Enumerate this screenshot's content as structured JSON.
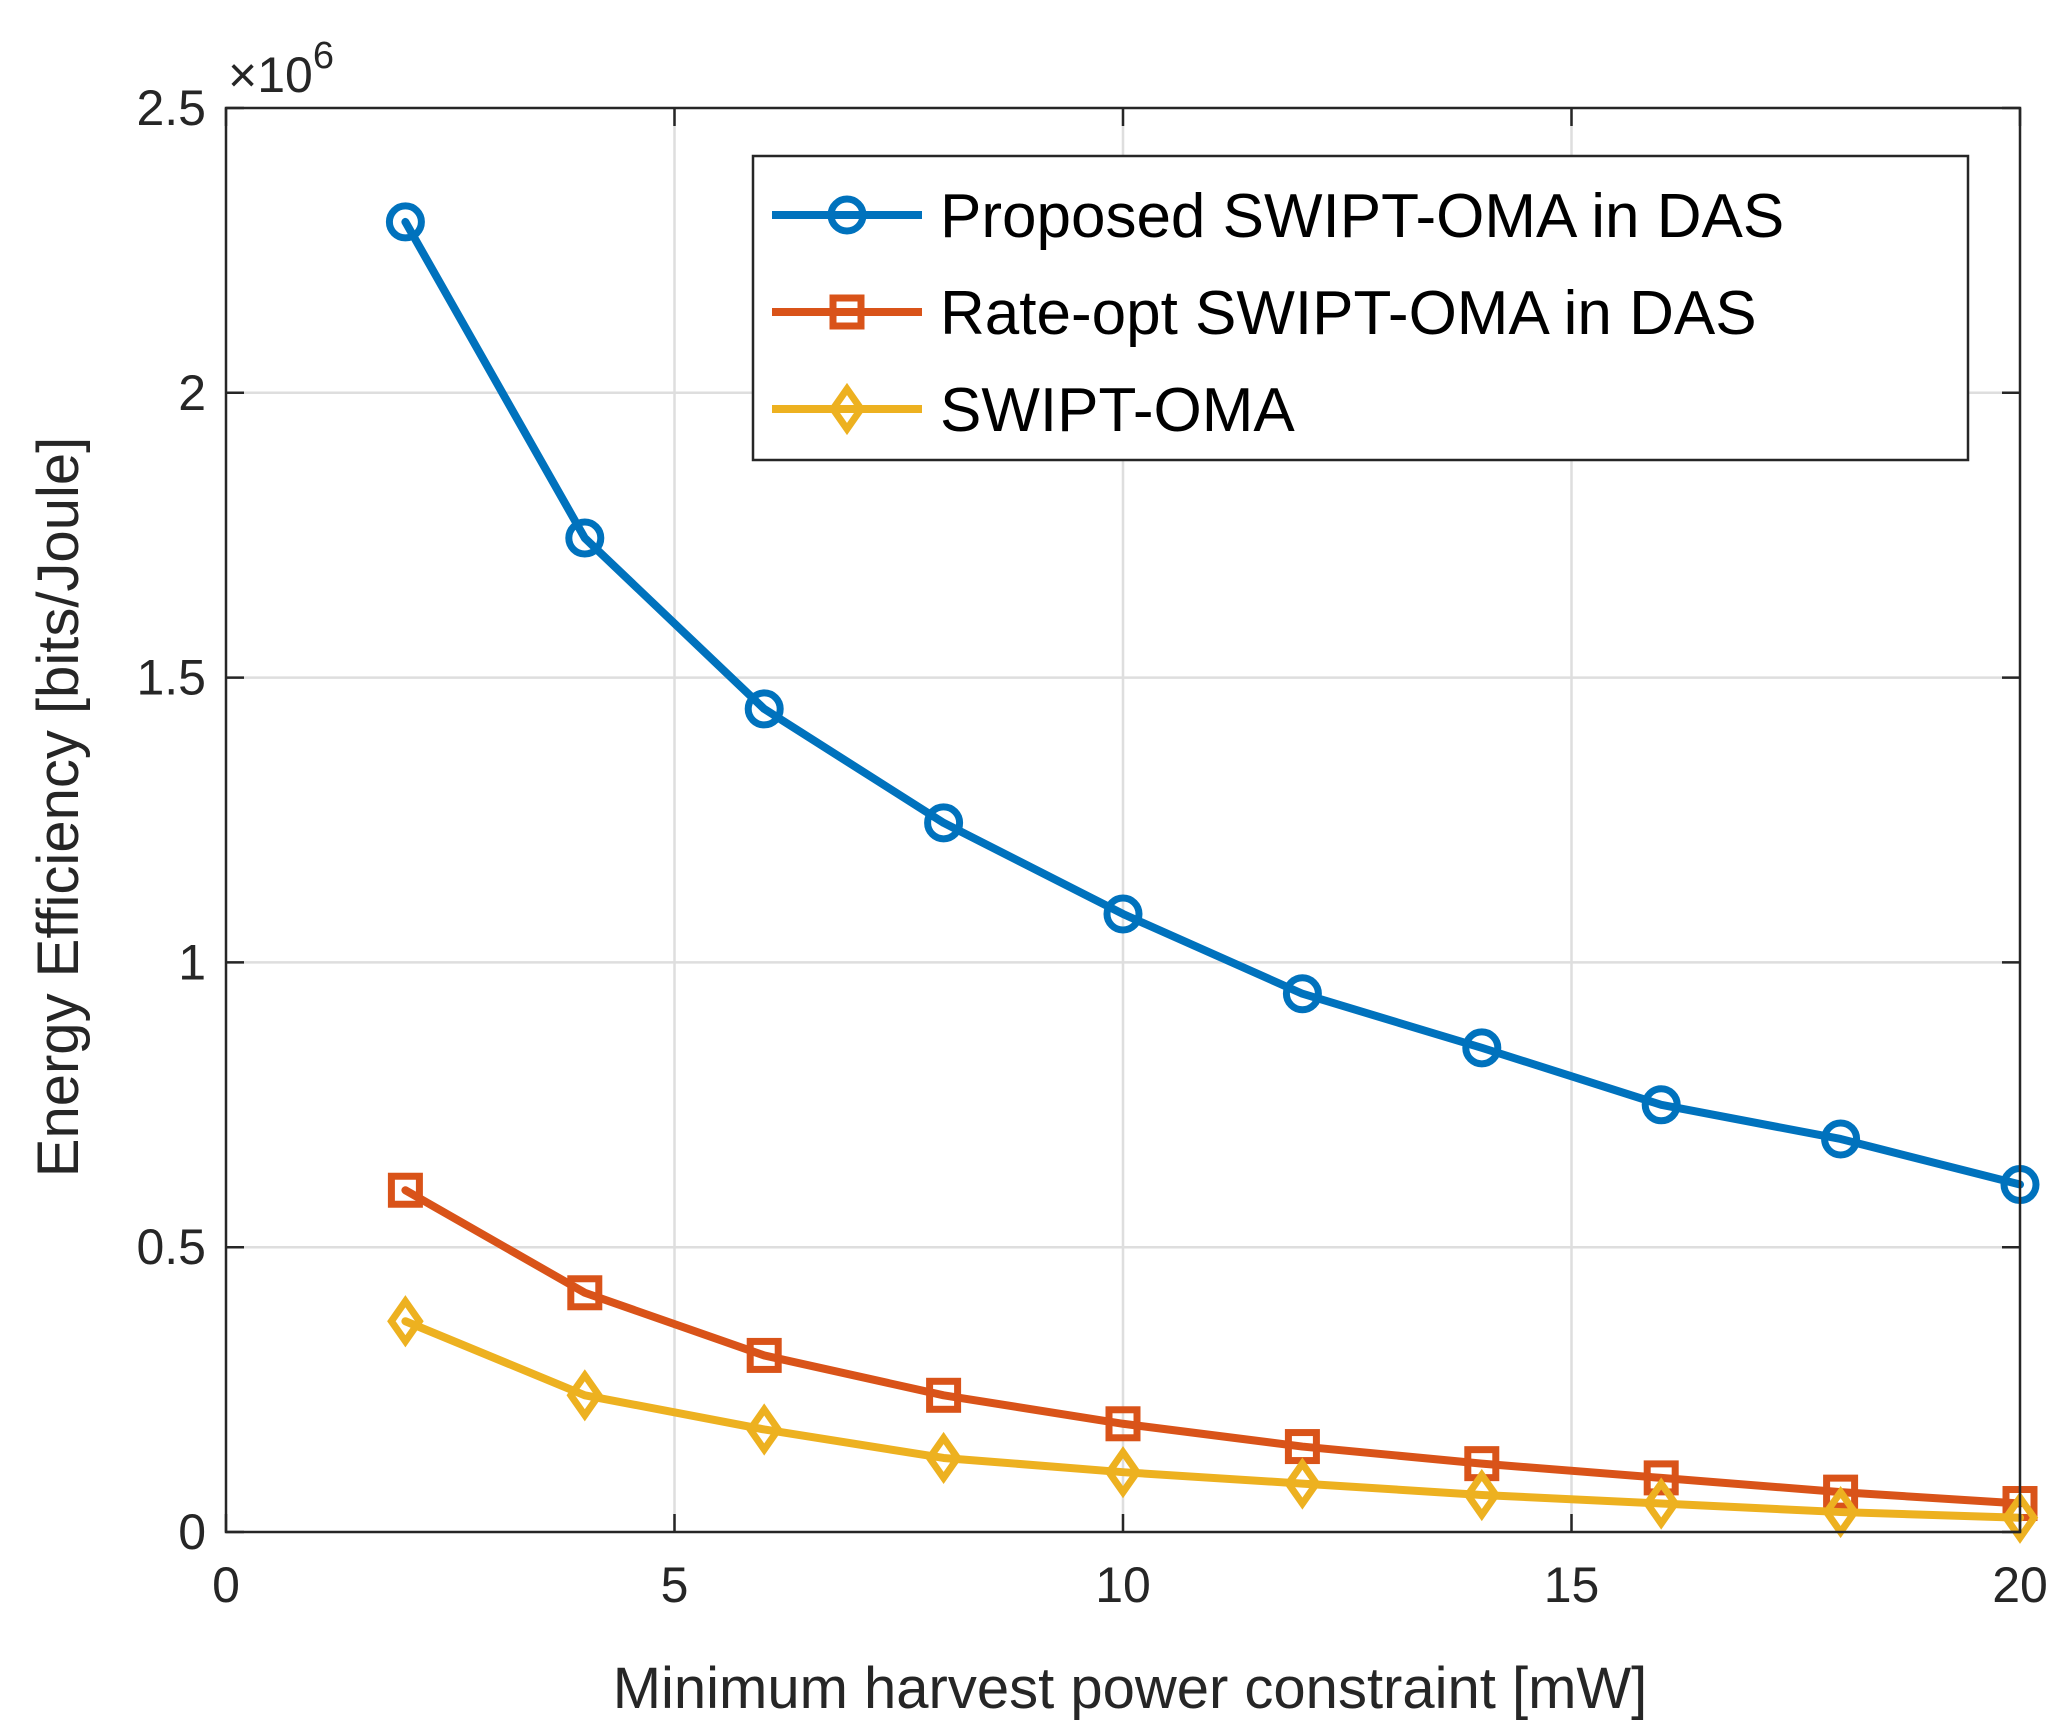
{
  "chart_data": {
    "type": "line",
    "title": "",
    "xlabel": "Minimum harvest power constraint [mW]",
    "ylabel": "Energy Efficiency [bits/Joule]",
    "y_multiplier": {
      "base": "×10",
      "exponent": "6"
    },
    "xlim": [
      0,
      20
    ],
    "ylim": [
      0,
      2.5
    ],
    "xticks": [
      0,
      5,
      10,
      15,
      20
    ],
    "xtick_labels": [
      "0",
      "5",
      "10",
      "15",
      "20"
    ],
    "yticks": [
      0,
      0.5,
      1,
      1.5,
      2,
      2.5
    ],
    "ytick_labels": [
      "0",
      "0.5",
      "1",
      "1.5",
      "2",
      "2.5"
    ],
    "grid": true,
    "legend_position": "top-right",
    "x": [
      2,
      4,
      6,
      8,
      10,
      12,
      14,
      16,
      18,
      20
    ],
    "series": [
      {
        "name": "Proposed SWIPT-OMA in DAS",
        "color": "#0072BD",
        "marker": "circle",
        "values": [
          2.3,
          1.745,
          1.445,
          1.245,
          1.085,
          0.945,
          0.85,
          0.75,
          0.69,
          0.61
        ]
      },
      {
        "name": "Rate-opt SWIPT-OMA in DAS",
        "color": "#D95319",
        "marker": "square",
        "values": [
          0.6,
          0.42,
          0.31,
          0.24,
          0.19,
          0.15,
          0.12,
          0.095,
          0.07,
          0.05
        ]
      },
      {
        "name": "SWIPT-OMA",
        "color": "#EDB120",
        "marker": "diamond",
        "values": [
          0.37,
          0.24,
          0.18,
          0.13,
          0.105,
          0.085,
          0.065,
          0.05,
          0.035,
          0.025
        ]
      }
    ]
  }
}
